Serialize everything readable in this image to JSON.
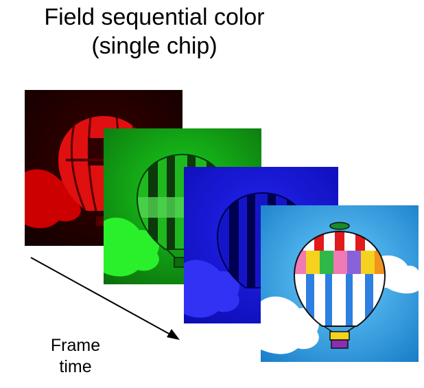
{
  "title": {
    "line1": "Field sequential color",
    "line2": "(single chip)"
  },
  "frames": [
    {
      "name": "red-field",
      "color": "#d81010"
    },
    {
      "name": "green-field",
      "color": "#13b514"
    },
    {
      "name": "blue-field",
      "color": "#1717e0"
    },
    {
      "name": "full-color-result",
      "color": "#2aa7e6"
    }
  ],
  "axis": {
    "label_line1": "Frame",
    "label_line2": "time"
  }
}
